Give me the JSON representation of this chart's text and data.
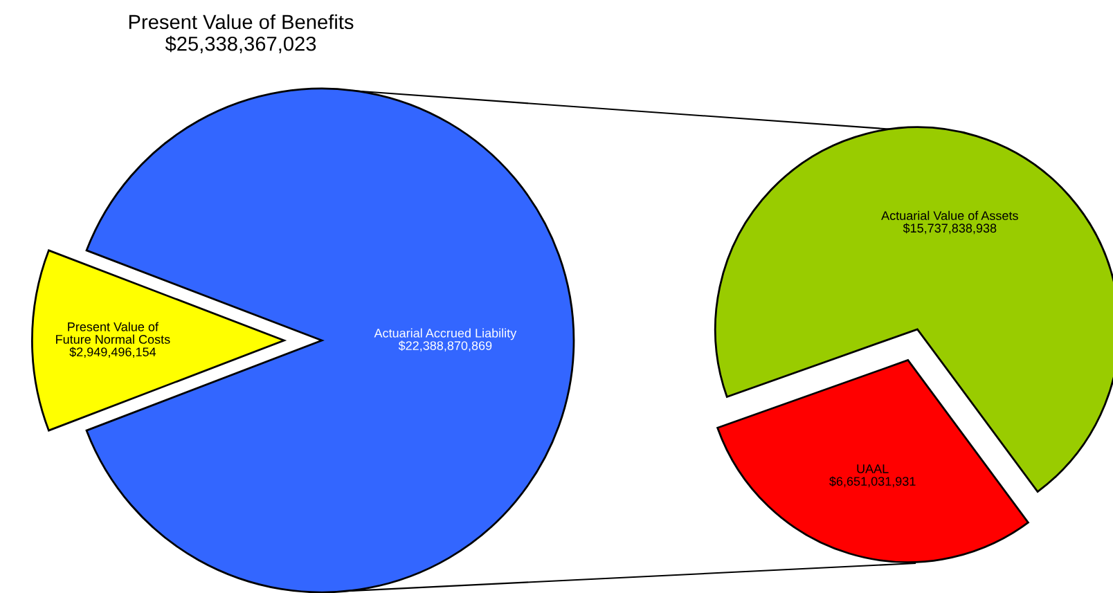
{
  "chart_data": [
    {
      "type": "pie",
      "title": "Present Value of Benefits\n$25,338,367,023",
      "categories": [
        "Present Value of\nFuture Normal Costs",
        "Actuarial Accrued Liability"
      ],
      "values": [
        2949496154,
        22388870869
      ],
      "colors": [
        "#ffff00",
        "#3366ff"
      ],
      "value_labels": [
        "$2,949,496,154",
        "$22,388,870,869"
      ]
    },
    {
      "type": "pie",
      "categories": [
        "Actuarial Value of Assets",
        "UAAL"
      ],
      "values": [
        15737838938,
        6651031931
      ],
      "colors": [
        "#99cc00",
        "#ff0000"
      ],
      "value_labels": [
        "$15,737,838,938",
        "$6,651,031,931"
      ]
    }
  ]
}
